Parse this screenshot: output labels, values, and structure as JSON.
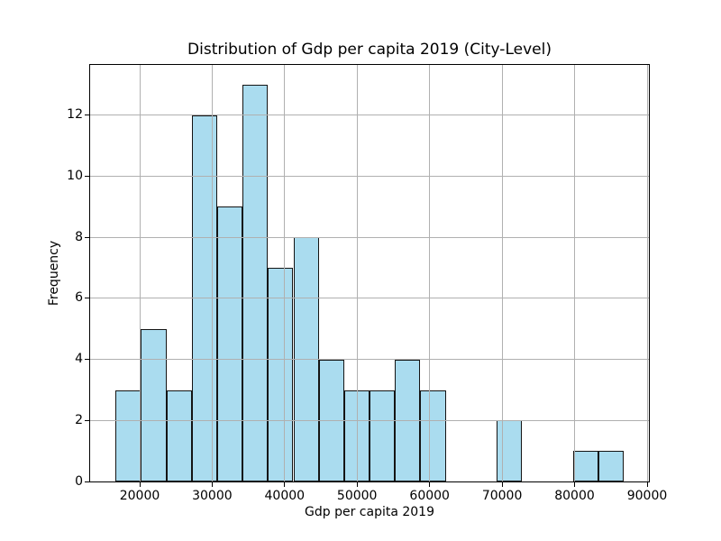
{
  "chart_data": {
    "type": "bar",
    "subtype": "histogram",
    "title": "Distribution of Gdp per capita 2019 (City-Level)",
    "xlabel": "Gdp per capita 2019",
    "ylabel": "Frequency",
    "bin_edges": [
      16670,
      20174,
      23678,
      27182,
      30686,
      34190,
      37694,
      41198,
      44702,
      48206,
      51710,
      55214,
      58718,
      62222,
      65726,
      69230,
      72734,
      76238,
      79742,
      83246,
      86750
    ],
    "frequencies": [
      3,
      5,
      3,
      12,
      9,
      13,
      7,
      8,
      4,
      3,
      3,
      4,
      3,
      0,
      0,
      2,
      0,
      0,
      1,
      1
    ],
    "xticks": [
      20000,
      30000,
      40000,
      50000,
      60000,
      70000,
      80000,
      90000
    ],
    "yticks": [
      0,
      2,
      4,
      6,
      8,
      10,
      12
    ],
    "xlim": [
      13166,
      90254
    ],
    "ylim": [
      0,
      13.65
    ],
    "grid": true,
    "grid_over_bars": true,
    "legend_position": "none",
    "colors": {
      "bar_fill": "#AADCEF",
      "bar_edge": "#141414",
      "grid": "#B0B0B0",
      "spine": "#000000",
      "text": "#000000",
      "background": "#FFFFFF"
    }
  }
}
